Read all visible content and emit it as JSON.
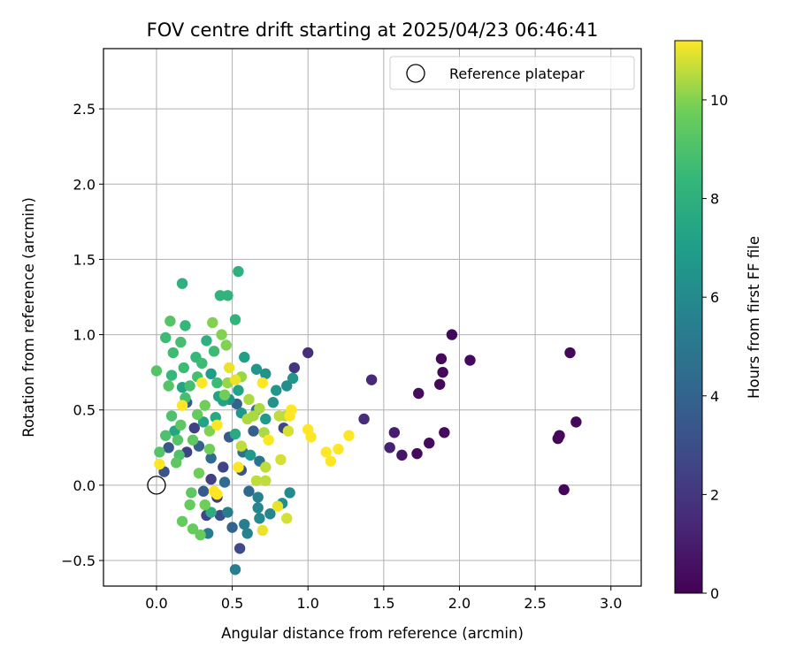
{
  "chart_data": {
    "type": "scatter",
    "title": "FOV centre drift starting at 2025/04/23 06:46:41",
    "xlabel": "Angular distance from reference (arcmin)",
    "ylabel": "Rotation from reference (arcmin)",
    "xlim": [
      -0.35,
      3.2
    ],
    "ylim": [
      -0.67,
      2.9
    ],
    "xticks": [
      0.0,
      0.5,
      1.0,
      1.5,
      2.0,
      2.5,
      3.0
    ],
    "xtick_labels": [
      "0.0",
      "0.5",
      "1.0",
      "1.5",
      "2.0",
      "2.5",
      "3.0"
    ],
    "yticks": [
      -0.5,
      0.0,
      0.5,
      1.0,
      1.5,
      2.0,
      2.5
    ],
    "ytick_labels": [
      "−0.5",
      "0.0",
      "0.5",
      "1.0",
      "1.5",
      "2.0",
      "2.5"
    ],
    "grid": true,
    "legend": {
      "placement": "top-right",
      "entries": [
        "Reference platepar"
      ]
    },
    "reference_point": {
      "x": 0.0,
      "y": 0.0,
      "label": "Reference platepar"
    },
    "colorbar": {
      "label": "Hours from first FF file",
      "colormap": "viridis",
      "range": [
        0,
        11.2
      ],
      "ticks": [
        0,
        2,
        4,
        6,
        8,
        10
      ],
      "tick_labels": [
        "0",
        "2",
        "4",
        "6",
        "8",
        "10"
      ]
    },
    "points": [
      [
        2.73,
        0.88,
        0.2
      ],
      [
        2.77,
        0.42,
        0.2
      ],
      [
        2.66,
        0.33,
        0.2
      ],
      [
        2.65,
        0.31,
        0.2
      ],
      [
        2.69,
        -0.03,
        0.2
      ],
      [
        1.95,
        1.0,
        0.3
      ],
      [
        2.07,
        0.83,
        0.3
      ],
      [
        1.88,
        0.84,
        0.3
      ],
      [
        1.89,
        0.75,
        0.3
      ],
      [
        1.87,
        0.67,
        0.3
      ],
      [
        1.73,
        0.61,
        0.4
      ],
      [
        1.9,
        0.35,
        0.4
      ],
      [
        1.8,
        0.28,
        0.4
      ],
      [
        1.72,
        0.21,
        0.4
      ],
      [
        1.62,
        0.2,
        0.8
      ],
      [
        1.57,
        0.35,
        1.0
      ],
      [
        1.54,
        0.25,
        1.2
      ],
      [
        1.42,
        0.7,
        1.4
      ],
      [
        1.37,
        0.44,
        1.6
      ],
      [
        1.0,
        0.88,
        1.6
      ],
      [
        0.91,
        0.78,
        2.0
      ],
      [
        0.84,
        0.38,
        2.6
      ],
      [
        0.55,
        -0.42,
        2.8
      ],
      [
        0.33,
        -0.2,
        2.6
      ],
      [
        0.4,
        -0.08,
        2.2
      ],
      [
        0.36,
        0.04,
        2.4
      ],
      [
        0.2,
        0.22,
        2.4
      ],
      [
        0.44,
        0.12,
        2.6
      ],
      [
        0.25,
        0.38,
        2.4
      ],
      [
        0.42,
        -0.2,
        3.0
      ],
      [
        0.05,
        0.09,
        3.2
      ],
      [
        0.08,
        0.25,
        3.4
      ],
      [
        0.2,
        0.55,
        3.4
      ],
      [
        0.48,
        0.32,
        3.6
      ],
      [
        0.56,
        0.1,
        3.4
      ],
      [
        0.31,
        -0.04,
        3.6
      ],
      [
        0.64,
        0.36,
        3.8
      ],
      [
        0.28,
        0.26,
        3.8
      ],
      [
        0.53,
        0.54,
        4.0
      ],
      [
        0.5,
        -0.28,
        4.0
      ],
      [
        0.61,
        -0.04,
        4.2
      ],
      [
        0.45,
        0.02,
        4.4
      ],
      [
        0.36,
        0.18,
        4.4
      ],
      [
        0.57,
        0.22,
        4.6
      ],
      [
        0.66,
        0.5,
        4.6
      ],
      [
        0.68,
        0.16,
        4.8
      ],
      [
        0.52,
        -0.56,
        5.4
      ],
      [
        0.34,
        -0.32,
        5.2
      ],
      [
        0.47,
        -0.18,
        5.2
      ],
      [
        0.58,
        -0.26,
        5.4
      ],
      [
        0.6,
        -0.32,
        5.6
      ],
      [
        0.67,
        -0.08,
        5.6
      ],
      [
        0.75,
        -0.19,
        5.8
      ],
      [
        0.67,
        -0.15,
        5.8
      ],
      [
        0.68,
        -0.22,
        6.0
      ],
      [
        0.88,
        -0.05,
        6.0
      ],
      [
        0.83,
        -0.12,
        6.2
      ],
      [
        0.86,
        0.66,
        6.2
      ],
      [
        0.72,
        0.74,
        6.4
      ],
      [
        0.77,
        0.55,
        6.4
      ],
      [
        0.9,
        0.71,
        6.6
      ],
      [
        0.79,
        0.63,
        6.6
      ],
      [
        0.66,
        0.77,
        6.6
      ],
      [
        0.72,
        0.44,
        6.8
      ],
      [
        0.62,
        0.2,
        6.8
      ],
      [
        0.48,
        0.57,
        6.4
      ],
      [
        0.56,
        0.48,
        6.6
      ],
      [
        0.58,
        0.85,
        7.0
      ],
      [
        0.54,
        0.63,
        7.2
      ],
      [
        0.44,
        0.56,
        7.2
      ],
      [
        0.36,
        0.74,
        7.0
      ],
      [
        0.41,
        0.59,
        7.2
      ],
      [
        0.31,
        0.42,
        7.2
      ],
      [
        0.17,
        0.65,
        7.4
      ],
      [
        0.12,
        0.36,
        7.4
      ],
      [
        0.39,
        0.45,
        7.6
      ],
      [
        0.52,
        0.34,
        7.6
      ],
      [
        0.36,
        -0.18,
        7.8
      ],
      [
        0.33,
        0.96,
        8.0
      ],
      [
        0.54,
        1.42,
        8.0
      ],
      [
        0.17,
        1.34,
        8.0
      ],
      [
        0.42,
        1.26,
        8.2
      ],
      [
        0.47,
        1.26,
        8.2
      ],
      [
        0.52,
        1.1,
        8.2
      ],
      [
        0.19,
        1.06,
        8.4
      ],
      [
        0.26,
        0.85,
        8.4
      ],
      [
        0.1,
        0.73,
        8.4
      ],
      [
        0.06,
        0.98,
        8.6
      ],
      [
        0.11,
        0.88,
        8.6
      ],
      [
        0.18,
        0.78,
        8.6
      ],
      [
        0.22,
        0.66,
        8.8
      ],
      [
        0.4,
        0.68,
        8.6
      ],
      [
        0.3,
        0.81,
        8.6
      ],
      [
        0.38,
        0.89,
        8.6
      ],
      [
        0.27,
        0.72,
        8.8
      ],
      [
        0.16,
        0.95,
        8.8
      ],
      [
        0.19,
        0.58,
        8.8
      ],
      [
        0.1,
        0.46,
        9.0
      ],
      [
        0.06,
        0.33,
        9.0
      ],
      [
        0.15,
        0.2,
        9.0
      ],
      [
        0.02,
        0.22,
        9.2
      ],
      [
        0.0,
        0.76,
        9.2
      ],
      [
        0.09,
        1.09,
        9.2
      ],
      [
        0.08,
        0.66,
        9.2
      ],
      [
        0.14,
        0.3,
        9.2
      ],
      [
        0.16,
        0.4,
        9.4
      ],
      [
        0.24,
        0.3,
        9.4
      ],
      [
        0.13,
        0.15,
        9.4
      ],
      [
        0.23,
        -0.05,
        9.4
      ],
      [
        0.22,
        -0.13,
        9.6
      ],
      [
        0.17,
        -0.24,
        9.6
      ],
      [
        0.24,
        -0.29,
        9.6
      ],
      [
        0.29,
        -0.33,
        9.6
      ],
      [
        0.32,
        -0.13,
        9.8
      ],
      [
        0.28,
        0.08,
        9.8
      ],
      [
        0.35,
        0.24,
        9.8
      ],
      [
        0.27,
        0.47,
        9.6
      ],
      [
        0.32,
        0.53,
        9.8
      ],
      [
        0.45,
        0.6,
        9.8
      ],
      [
        0.35,
        0.36,
        10.0
      ],
      [
        0.43,
        1.0,
        10.0
      ],
      [
        0.37,
        1.08,
        10.0
      ],
      [
        0.46,
        0.93,
        10.0
      ],
      [
        0.47,
        0.68,
        10.2
      ],
      [
        0.56,
        0.72,
        10.2
      ],
      [
        0.64,
        0.46,
        10.4
      ],
      [
        0.68,
        0.51,
        10.4
      ],
      [
        0.6,
        0.44,
        10.4
      ],
      [
        0.71,
        0.35,
        10.4
      ],
      [
        0.61,
        0.57,
        10.4
      ],
      [
        0.56,
        0.26,
        10.6
      ],
      [
        0.72,
        0.12,
        10.6
      ],
      [
        0.66,
        0.03,
        10.6
      ],
      [
        0.72,
        0.03,
        10.6
      ],
      [
        0.81,
        0.46,
        10.6
      ],
      [
        0.85,
        0.46,
        10.6
      ],
      [
        0.87,
        0.36,
        10.8
      ],
      [
        0.82,
        0.17,
        10.8
      ],
      [
        0.86,
        -0.22,
        10.8
      ],
      [
        0.7,
        -0.3,
        11.0
      ],
      [
        0.8,
        -0.14,
        11.0
      ],
      [
        0.52,
        0.7,
        11.0
      ],
      [
        0.48,
        0.78,
        11.0
      ],
      [
        0.7,
        0.68,
        11.2
      ],
      [
        0.88,
        0.46,
        11.2
      ],
      [
        0.89,
        0.5,
        11.2
      ],
      [
        1.0,
        0.37,
        11.2
      ],
      [
        1.02,
        0.32,
        11.2
      ],
      [
        1.12,
        0.22,
        11.2
      ],
      [
        1.15,
        0.16,
        11.2
      ],
      [
        1.2,
        0.24,
        11.2
      ],
      [
        1.27,
        0.33,
        11.2
      ],
      [
        0.74,
        0.3,
        11.2
      ],
      [
        0.54,
        0.12,
        11.2
      ],
      [
        0.4,
        0.4,
        11.2
      ],
      [
        0.3,
        0.68,
        11.2
      ],
      [
        0.38,
        -0.04,
        11.2
      ],
      [
        0.4,
        -0.06,
        11.2
      ],
      [
        0.17,
        0.53,
        11.2
      ],
      [
        0.02,
        0.14,
        11.2
      ]
    ]
  }
}
